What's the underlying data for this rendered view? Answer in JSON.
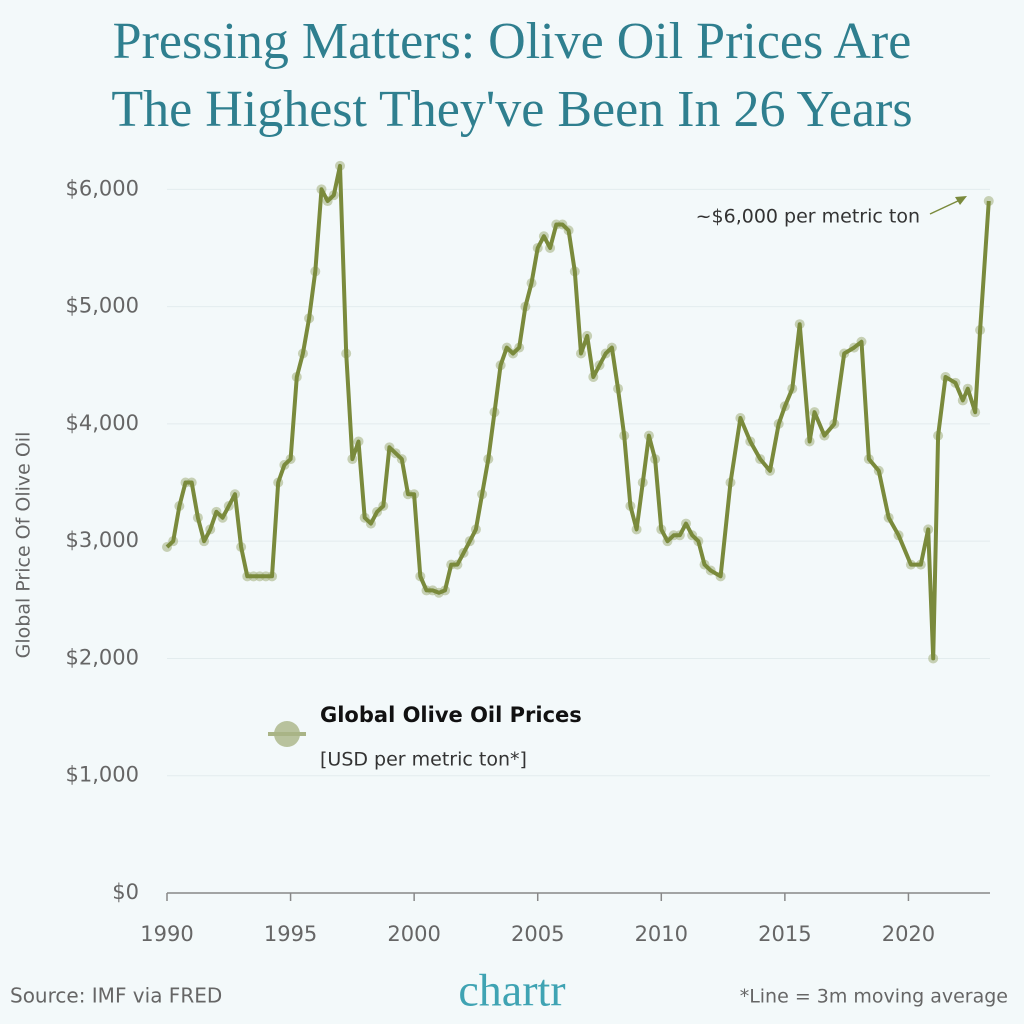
{
  "chart_data": {
    "type": "line",
    "title": [
      "Pressing Matters: Olive Oil Prices Are",
      "The Highest They've Been In 26 Years"
    ],
    "y_label": "Global Price Of Olive Oil",
    "annotation": "~$6,000 per metric ton",
    "legend_unit": "[USD per metric ton*]",
    "source": "Source: IMF via FRED",
    "logo": "chartr",
    "footnote": "*Line = 3m moving average",
    "x": [
      1990,
      1990.25,
      1990.5,
      1990.75,
      1991,
      1991.25,
      1991.5,
      1991.75,
      1992,
      1992.25,
      1992.5,
      1992.75,
      1993,
      1993.25,
      1993.5,
      1993.75,
      1994,
      1994.25,
      1994.5,
      1994.75,
      1995,
      1995.25,
      1995.5,
      1995.75,
      1996,
      1996.25,
      1996.5,
      1996.75,
      1997,
      1997.25,
      1997.5,
      1997.75,
      1998,
      1998.25,
      1998.5,
      1998.75,
      1999,
      1999.25,
      1999.5,
      1999.75,
      2000,
      2000.25,
      2000.5,
      2000.75,
      2001,
      2001.25,
      2001.5,
      2001.75,
      2002,
      2002.25,
      2002.5,
      2002.75,
      2003,
      2003.25,
      2003.5,
      2003.75,
      2004,
      2004.25,
      2004.5,
      2004.75,
      2005,
      2005.25,
      2005.5,
      2005.75,
      2006,
      2006.25,
      2006.5,
      2006.75,
      2007,
      2007.25,
      2007.5,
      2007.75,
      2008,
      2008.25,
      2008.5,
      2008.75,
      2009,
      2009.25,
      2009.5,
      2009.75,
      2010,
      2010.25,
      2010.5,
      2010.75,
      2011,
      2011.25,
      2011.5,
      2011.75,
      2012,
      2012.4,
      2012.8,
      2013.2,
      2013.6,
      2014,
      2014.4,
      2014.75,
      2015,
      2015.3,
      2015.6,
      2016,
      2016.2,
      2016.6,
      2017,
      2017.4,
      2017.8,
      2018.1,
      2018.4,
      2018.8,
      2019.2,
      2019.6,
      2020.1,
      2020.5,
      2020.8,
      2021,
      2021.2,
      2021.5,
      2021.9,
      2022.2,
      2022.4,
      2022.7,
      2022.9,
      2023.25
    ],
    "series": [
      {
        "name": "Global Olive Oil Prices",
        "color": "#7a8a3c",
        "dot_color": "#a9b486",
        "values": [
          2950,
          3000,
          3300,
          3500,
          3500,
          3200,
          3000,
          3100,
          3250,
          3200,
          3300,
          3400,
          2950,
          2700,
          2700,
          2700,
          2700,
          2700,
          3500,
          3650,
          3700,
          4400,
          4600,
          4900,
          5300,
          6000,
          5900,
          5950,
          6200,
          4600,
          3700,
          3850,
          3200,
          3150,
          3250,
          3300,
          3800,
          3750,
          3700,
          3400,
          3400,
          2700,
          2580,
          2580,
          2560,
          2580,
          2800,
          2800,
          2900,
          3000,
          3100,
          3400,
          3700,
          4100,
          4500,
          4650,
          4600,
          4650,
          5000,
          5200,
          5500,
          5600,
          5500,
          5700,
          5700,
          5650,
          5300,
          4600,
          4750,
          4400,
          4500,
          4600,
          4650,
          4300,
          3900,
          3300,
          3100,
          3500,
          3900,
          3700,
          3100,
          3000,
          3050,
          3050,
          3150,
          3050,
          3000,
          2800,
          2750,
          2700,
          3500,
          4050,
          3850,
          3700,
          3600,
          4000,
          4150,
          4300,
          4850,
          3850,
          4100,
          3900,
          4000,
          4600,
          4650,
          4700,
          3700,
          3600,
          3200,
          3050,
          2800,
          2800,
          3100,
          2000,
          3900,
          4400,
          4350,
          4200,
          4300,
          4100,
          4800,
          5900
        ]
      }
    ],
    "xlim": [
      1990,
      2023.3
    ],
    "xticks": [
      1990,
      1995,
      2000,
      2005,
      2010,
      2015,
      2020
    ],
    "ylim": [
      0,
      6250
    ],
    "yticks": [
      {
        "value": 0,
        "label": "$0"
      },
      {
        "value": 1000,
        "label": "$1,000"
      },
      {
        "value": 2000,
        "label": "$2,000"
      },
      {
        "value": 3000,
        "label": "$3,000"
      },
      {
        "value": 4000,
        "label": "$4,000"
      },
      {
        "value": 5000,
        "label": "$5,000"
      },
      {
        "value": 6000,
        "label": "$6,000"
      }
    ],
    "grid": true
  }
}
